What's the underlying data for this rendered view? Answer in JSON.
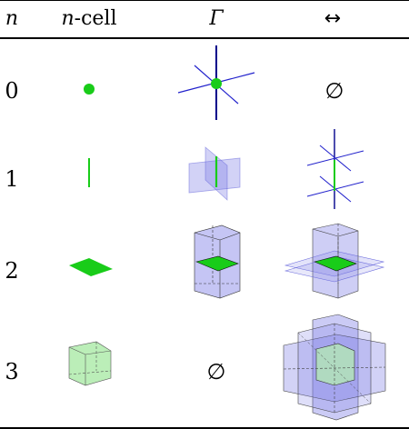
{
  "header": {
    "n": "n",
    "ncell_var": "n",
    "ncell_suffix": "-cell",
    "gamma": "Γ",
    "arrow": "↔"
  },
  "rows": [
    {
      "n": "0",
      "arrow_text": "∅"
    },
    {
      "n": "1"
    },
    {
      "n": "2"
    },
    {
      "n": "3",
      "gamma_text": "∅"
    }
  ],
  "colors": {
    "green": "#19cc19",
    "blue_fill": "#7e7ee6",
    "navy": "#00008b",
    "light_green": "#b4ecb0"
  }
}
